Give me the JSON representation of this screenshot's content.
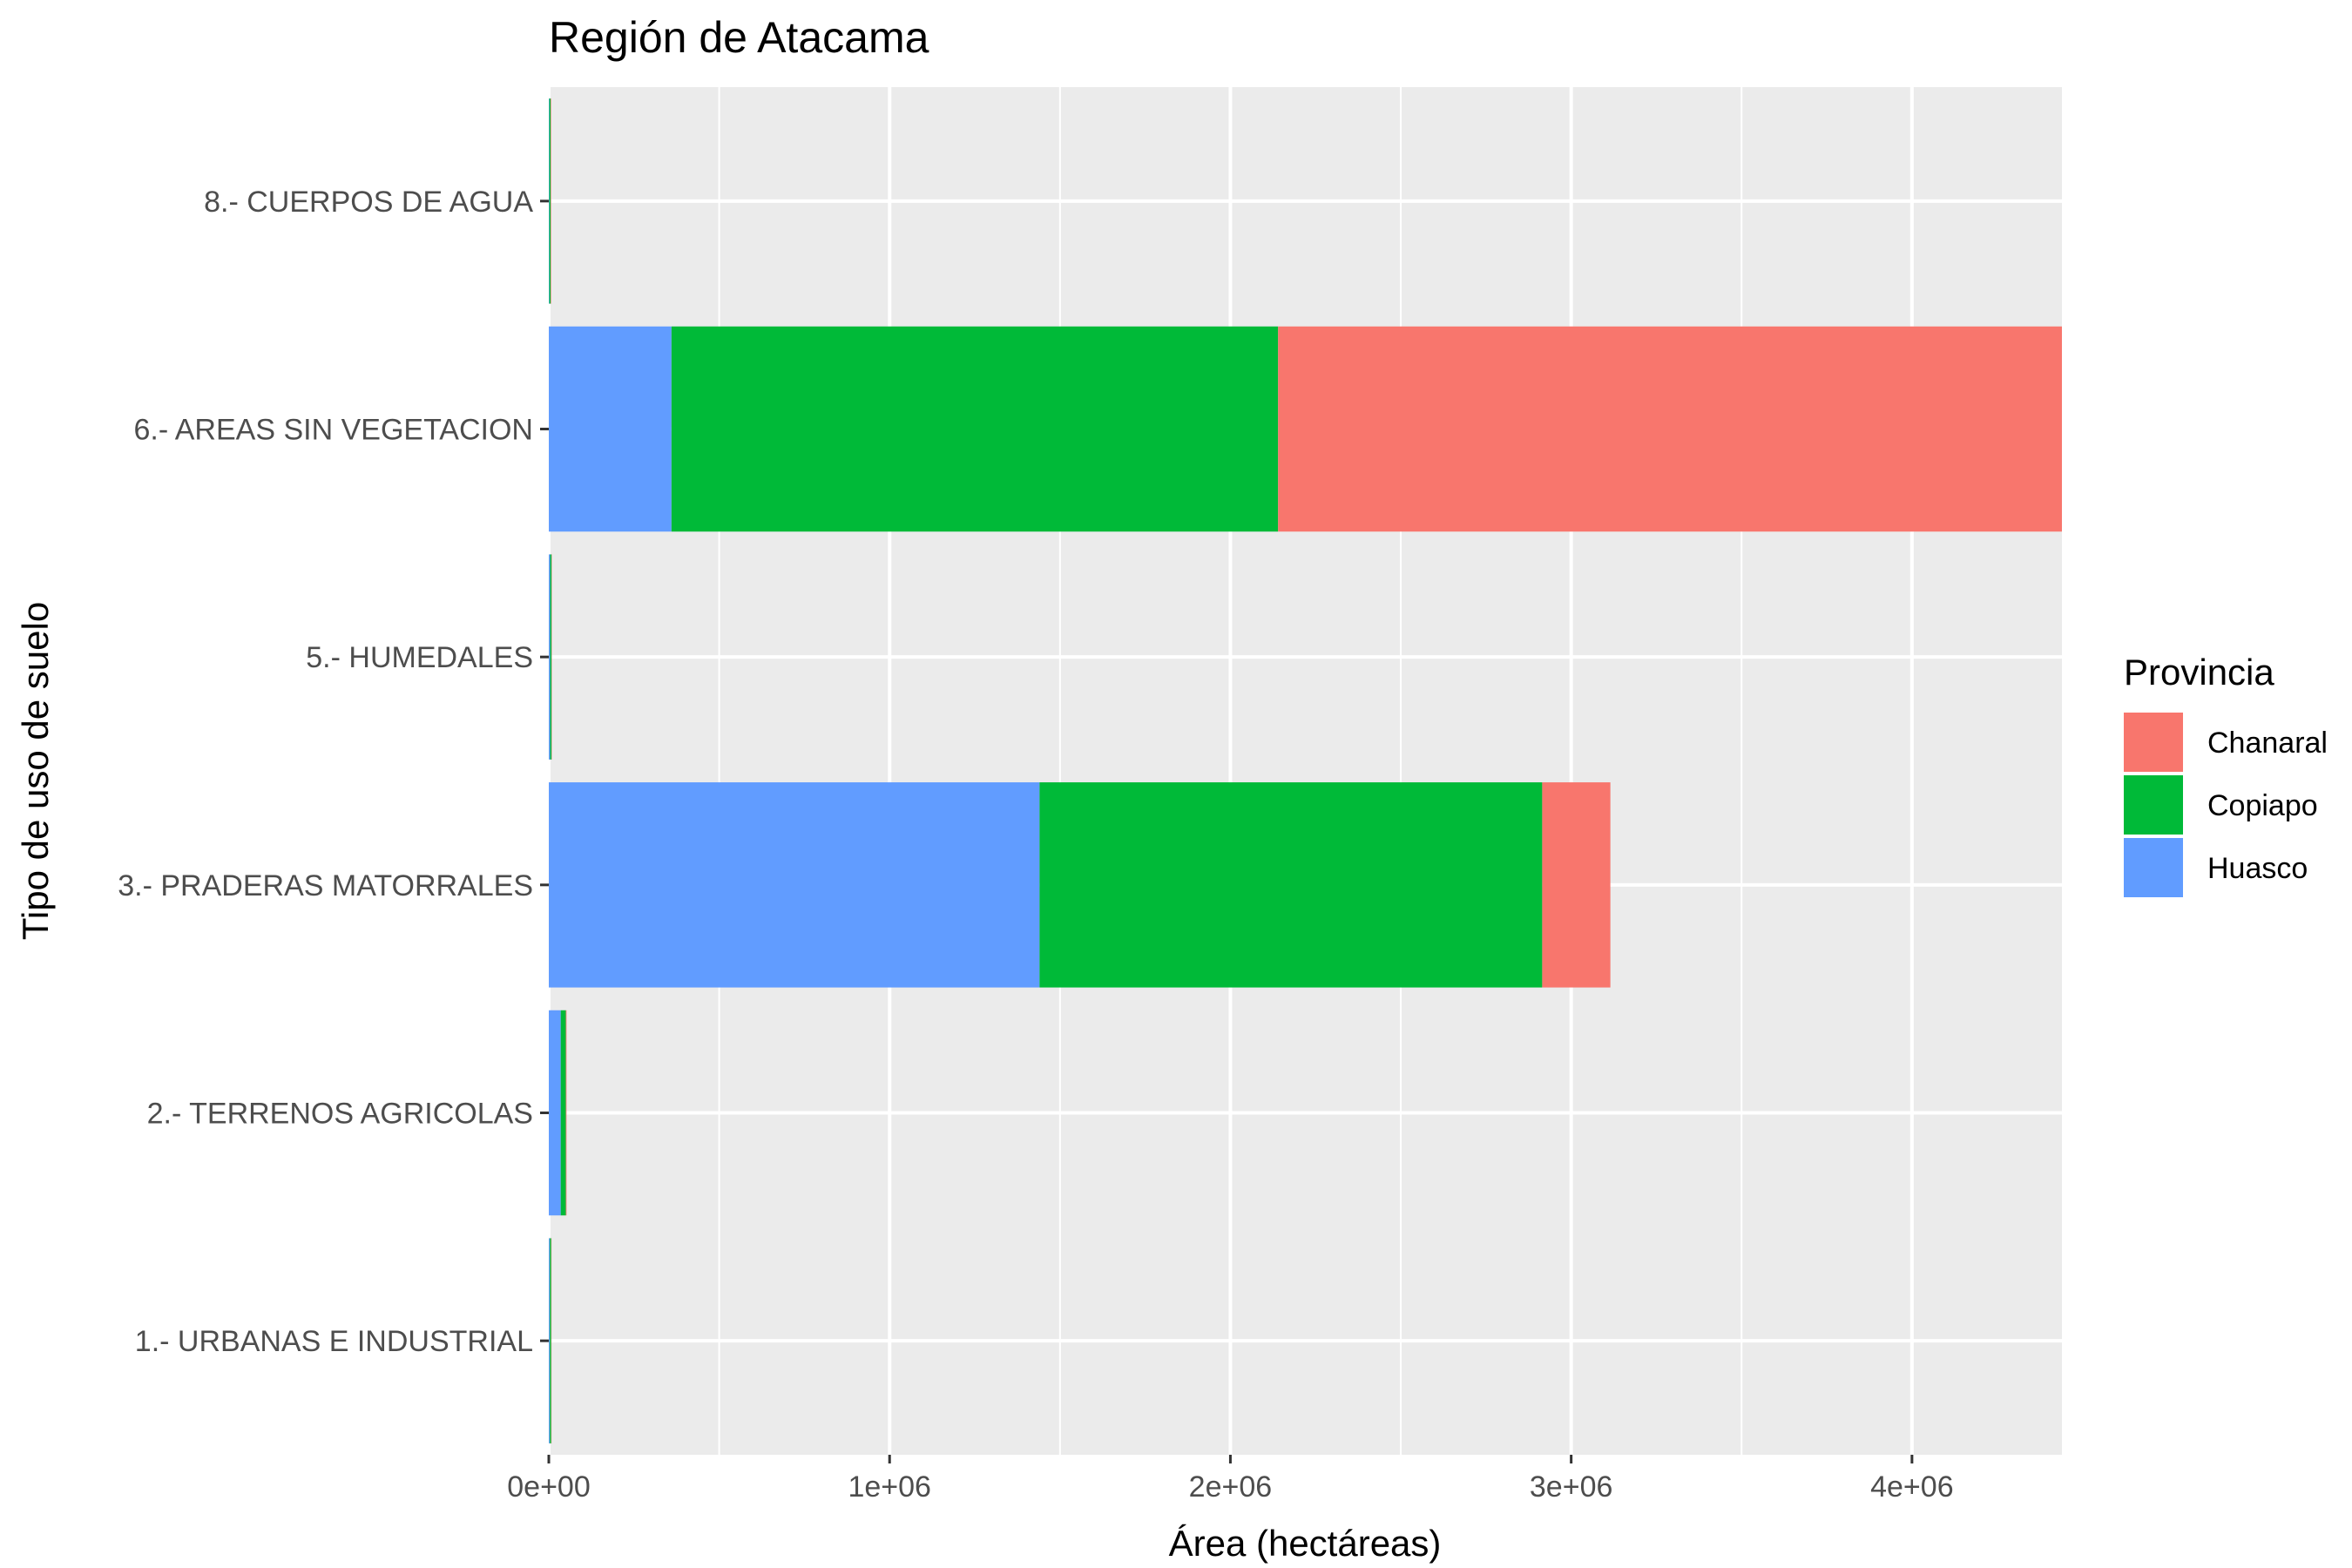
{
  "chart_data": {
    "type": "bar",
    "orientation": "horizontal",
    "stacked": true,
    "title": "Región de Atacama",
    "xlabel": "Área (hectáreas)",
    "ylabel": "Tipo de uso de suelo",
    "xlim": [
      0,
      4440000
    ],
    "x_ticks": [
      0,
      1000000,
      2000000,
      3000000,
      4000000
    ],
    "x_tick_labels": [
      "0e+00",
      "1e+06",
      "2e+06",
      "3e+06",
      "4e+06"
    ],
    "categories": [
      "1.- URBANAS E INDUSTRIAL",
      "2.- TERRENOS AGRICOLAS",
      "3.- PRADERAS MATORRALES",
      "5.- HUMEDALES",
      "6.- AREAS SIN VEGETACION",
      "8.- CUERPOS DE AGUA"
    ],
    "series": [
      {
        "name": "Huasco",
        "color": "#619CFF",
        "values": [
          3000,
          35000,
          1440000,
          4000,
          360000,
          1500
        ]
      },
      {
        "name": "Copiapo",
        "color": "#00BA38",
        "values": [
          4000,
          15000,
          1475000,
          4000,
          1780000,
          4000
        ]
      },
      {
        "name": "Chanaral",
        "color": "#F8766D",
        "values": [
          1000,
          2000,
          200000,
          1000,
          2300000,
          1500
        ]
      }
    ],
    "legend": {
      "title": "Provincia",
      "placement": "right",
      "entries": [
        "Chanaral",
        "Copiapo",
        "Huasco"
      ]
    },
    "grid": true,
    "panel_background": "#EBEBEB",
    "grid_color": "#FFFFFF"
  }
}
